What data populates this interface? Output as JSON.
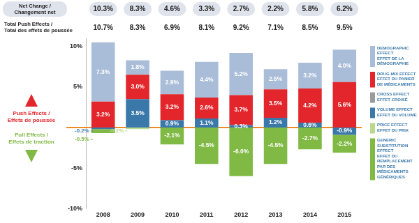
{
  "chart_data": {
    "type": "bar",
    "stacked": true,
    "data_labels": true,
    "grid": false,
    "legend": "right",
    "categories": [
      "2008",
      "2009",
      "2010",
      "2011",
      "2012",
      "2013",
      "2014",
      "2015"
    ],
    "ylim": [
      -10,
      11
    ],
    "yticks": [
      {
        "value": -10,
        "label": "-10%"
      },
      {
        "value": -5,
        "label": "-5%"
      },
      {
        "value": 5,
        "label": "5%"
      },
      {
        "value": 10,
        "label": "10%"
      }
    ],
    "push_label": "Push Effects / Effets de poussée",
    "pull_label": "Pull Effects / Effets de traction",
    "net_change": {
      "label": "Net Change / Changement net",
      "values": [
        10.3,
        8.3,
        4.6,
        3.3,
        2.7,
        2.2,
        5.8,
        6.2
      ],
      "value_labels": [
        "10.3%",
        "8.3%",
        "4.6%",
        "3.3%",
        "2.7%",
        "2.2%",
        "5.8%",
        "6.2%"
      ]
    },
    "total_push": {
      "label": "Total Push Effects / Total des effets de poussée",
      "values": [
        10.7,
        8.3,
        6.9,
        8.1,
        9.2,
        7.1,
        8.5,
        9.5
      ],
      "value_labels": [
        "10.7%",
        "8.3%",
        "6.9%",
        "8.1%",
        "9.2%",
        "7.1%",
        "8.5%",
        "9.5%"
      ]
    },
    "series": [
      {
        "name": "DEMOGRAPHIC EFFECT",
        "name_fr": "EFFET DE LA DÉMOGRAPHIE",
        "color": "#a9bdd8",
        "values": [
          7.3,
          1.8,
          2.9,
          4.4,
          5.2,
          2.5,
          3.2,
          4.0
        ],
        "value_labels": [
          "7.3%",
          "1.8%",
          "2.9%",
          "4.4%",
          "5.2%",
          "2.5%",
          "3.2%",
          "4.0%"
        ]
      },
      {
        "name": "DRUG-MIX EFFECT",
        "name_fr": "EFFET DU PANIER DE MÉDICAMENTS",
        "color": "#e2262b",
        "values": [
          3.2,
          3.0,
          3.2,
          2.6,
          3.7,
          3.5,
          4.2,
          5.6
        ],
        "value_labels": [
          "3.2%",
          "3.0%",
          "3.2%",
          "2.6%",
          "3.7%",
          "3.5%",
          "4.2%",
          "5.6%"
        ]
      },
      {
        "name": "CROSS EFFECT",
        "name_fr": "EFFET CROISÉ",
        "color": "#9b9b9b",
        "values": [
          null,
          null,
          null,
          null,
          null,
          null,
          null,
          null
        ],
        "value_labels": [
          null,
          null,
          null,
          null,
          null,
          null,
          null,
          null
        ]
      },
      {
        "name": "VOLUME EFFECT",
        "name_fr": "EFFET DU VOLUME",
        "color": "#3a78aa",
        "values": [
          -0.2,
          3.5,
          0.9,
          1.1,
          0.3,
          1.2,
          0.6,
          -0.9
        ],
        "value_labels": [
          "-0.2%",
          "3.5%",
          "0.9%",
          "1.1%",
          "0.3%",
          "1.2%",
          "0.6%",
          "-0.9%"
        ]
      },
      {
        "name": "PRICE EFFECT",
        "name_fr": "EFFET DU PRIX",
        "color": "#b8d98e",
        "values": [
          null,
          -0.2,
          null,
          null,
          null,
          null,
          null,
          null
        ],
        "value_labels": [
          null,
          "-0.2%",
          null,
          null,
          null,
          null,
          null,
          null
        ]
      },
      {
        "name": "GENERIC SUBSTITUTION EFFECT",
        "name_fr": "EFFET DU REMPLACEMENT PAR DES MÉDICAMENTS GÉNÉRIQUES",
        "color": "#80b944",
        "values": [
          -0.5,
          null,
          -2.1,
          -4.5,
          -6.0,
          -4.5,
          -2.7,
          -2.2
        ],
        "value_labels": [
          "-0.5%",
          null,
          "-2.1%",
          "-4.5%",
          "-6.0%",
          "-4.5%",
          "-2.7%",
          "-2.2%"
        ]
      }
    ]
  }
}
